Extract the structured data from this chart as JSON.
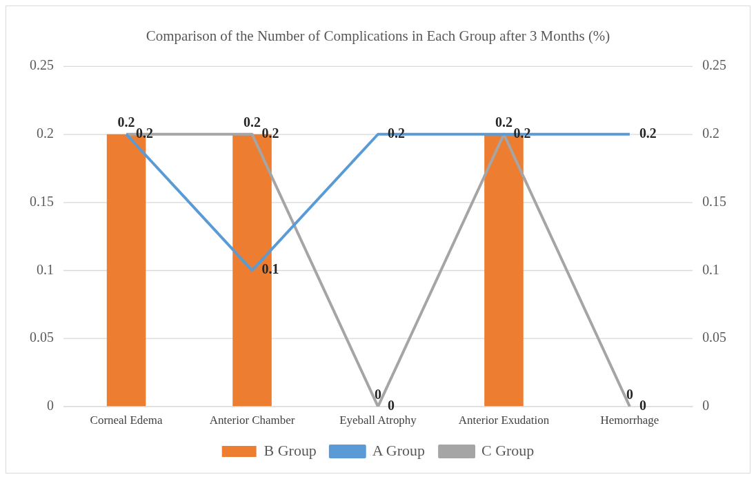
{
  "chart_data": {
    "type": "bar",
    "title": "Comparison of the Number of Complications in Each Group after 3 Months (%)",
    "categories": [
      "Corneal Edema",
      "Anterior Chamber",
      "Eyeball Atrophy",
      "Anterior Exudation",
      "Hemorrhage"
    ],
    "series": [
      {
        "name": "B Group",
        "color": "#ed7d31",
        "values": [
          0.2,
          0.2,
          0,
          0.2,
          0
        ],
        "value_labels": [
          "0.2",
          "0.2",
          "0",
          "0.2",
          "0"
        ]
      },
      {
        "name": "A Group",
        "type": "line",
        "color": "#5b9bd5",
        "values": [
          0.2,
          0.1,
          0.2,
          0.2,
          0.2
        ],
        "axis": "y2",
        "value_labels": [
          "0.2",
          "0.1",
          "0.2",
          "0.2",
          "0.2"
        ]
      },
      {
        "name": "C Group",
        "type": "line",
        "color": "#a5a5a5",
        "values": [
          0.2,
          0.2,
          0,
          0.2,
          0
        ],
        "axis": "y2",
        "value_labels": [
          null,
          "0.2",
          "0",
          null,
          "0"
        ]
      }
    ],
    "ylim": [
      0,
      0.25
    ],
    "yticks": [
      0,
      0.05,
      0.1,
      0.15,
      0.2,
      0.25
    ],
    "y2lim": [
      0,
      0.25
    ],
    "y2ticks": [
      0,
      0.05,
      0.1,
      0.15,
      0.2,
      0.25
    ],
    "grid": "y",
    "legend": "bottom"
  }
}
